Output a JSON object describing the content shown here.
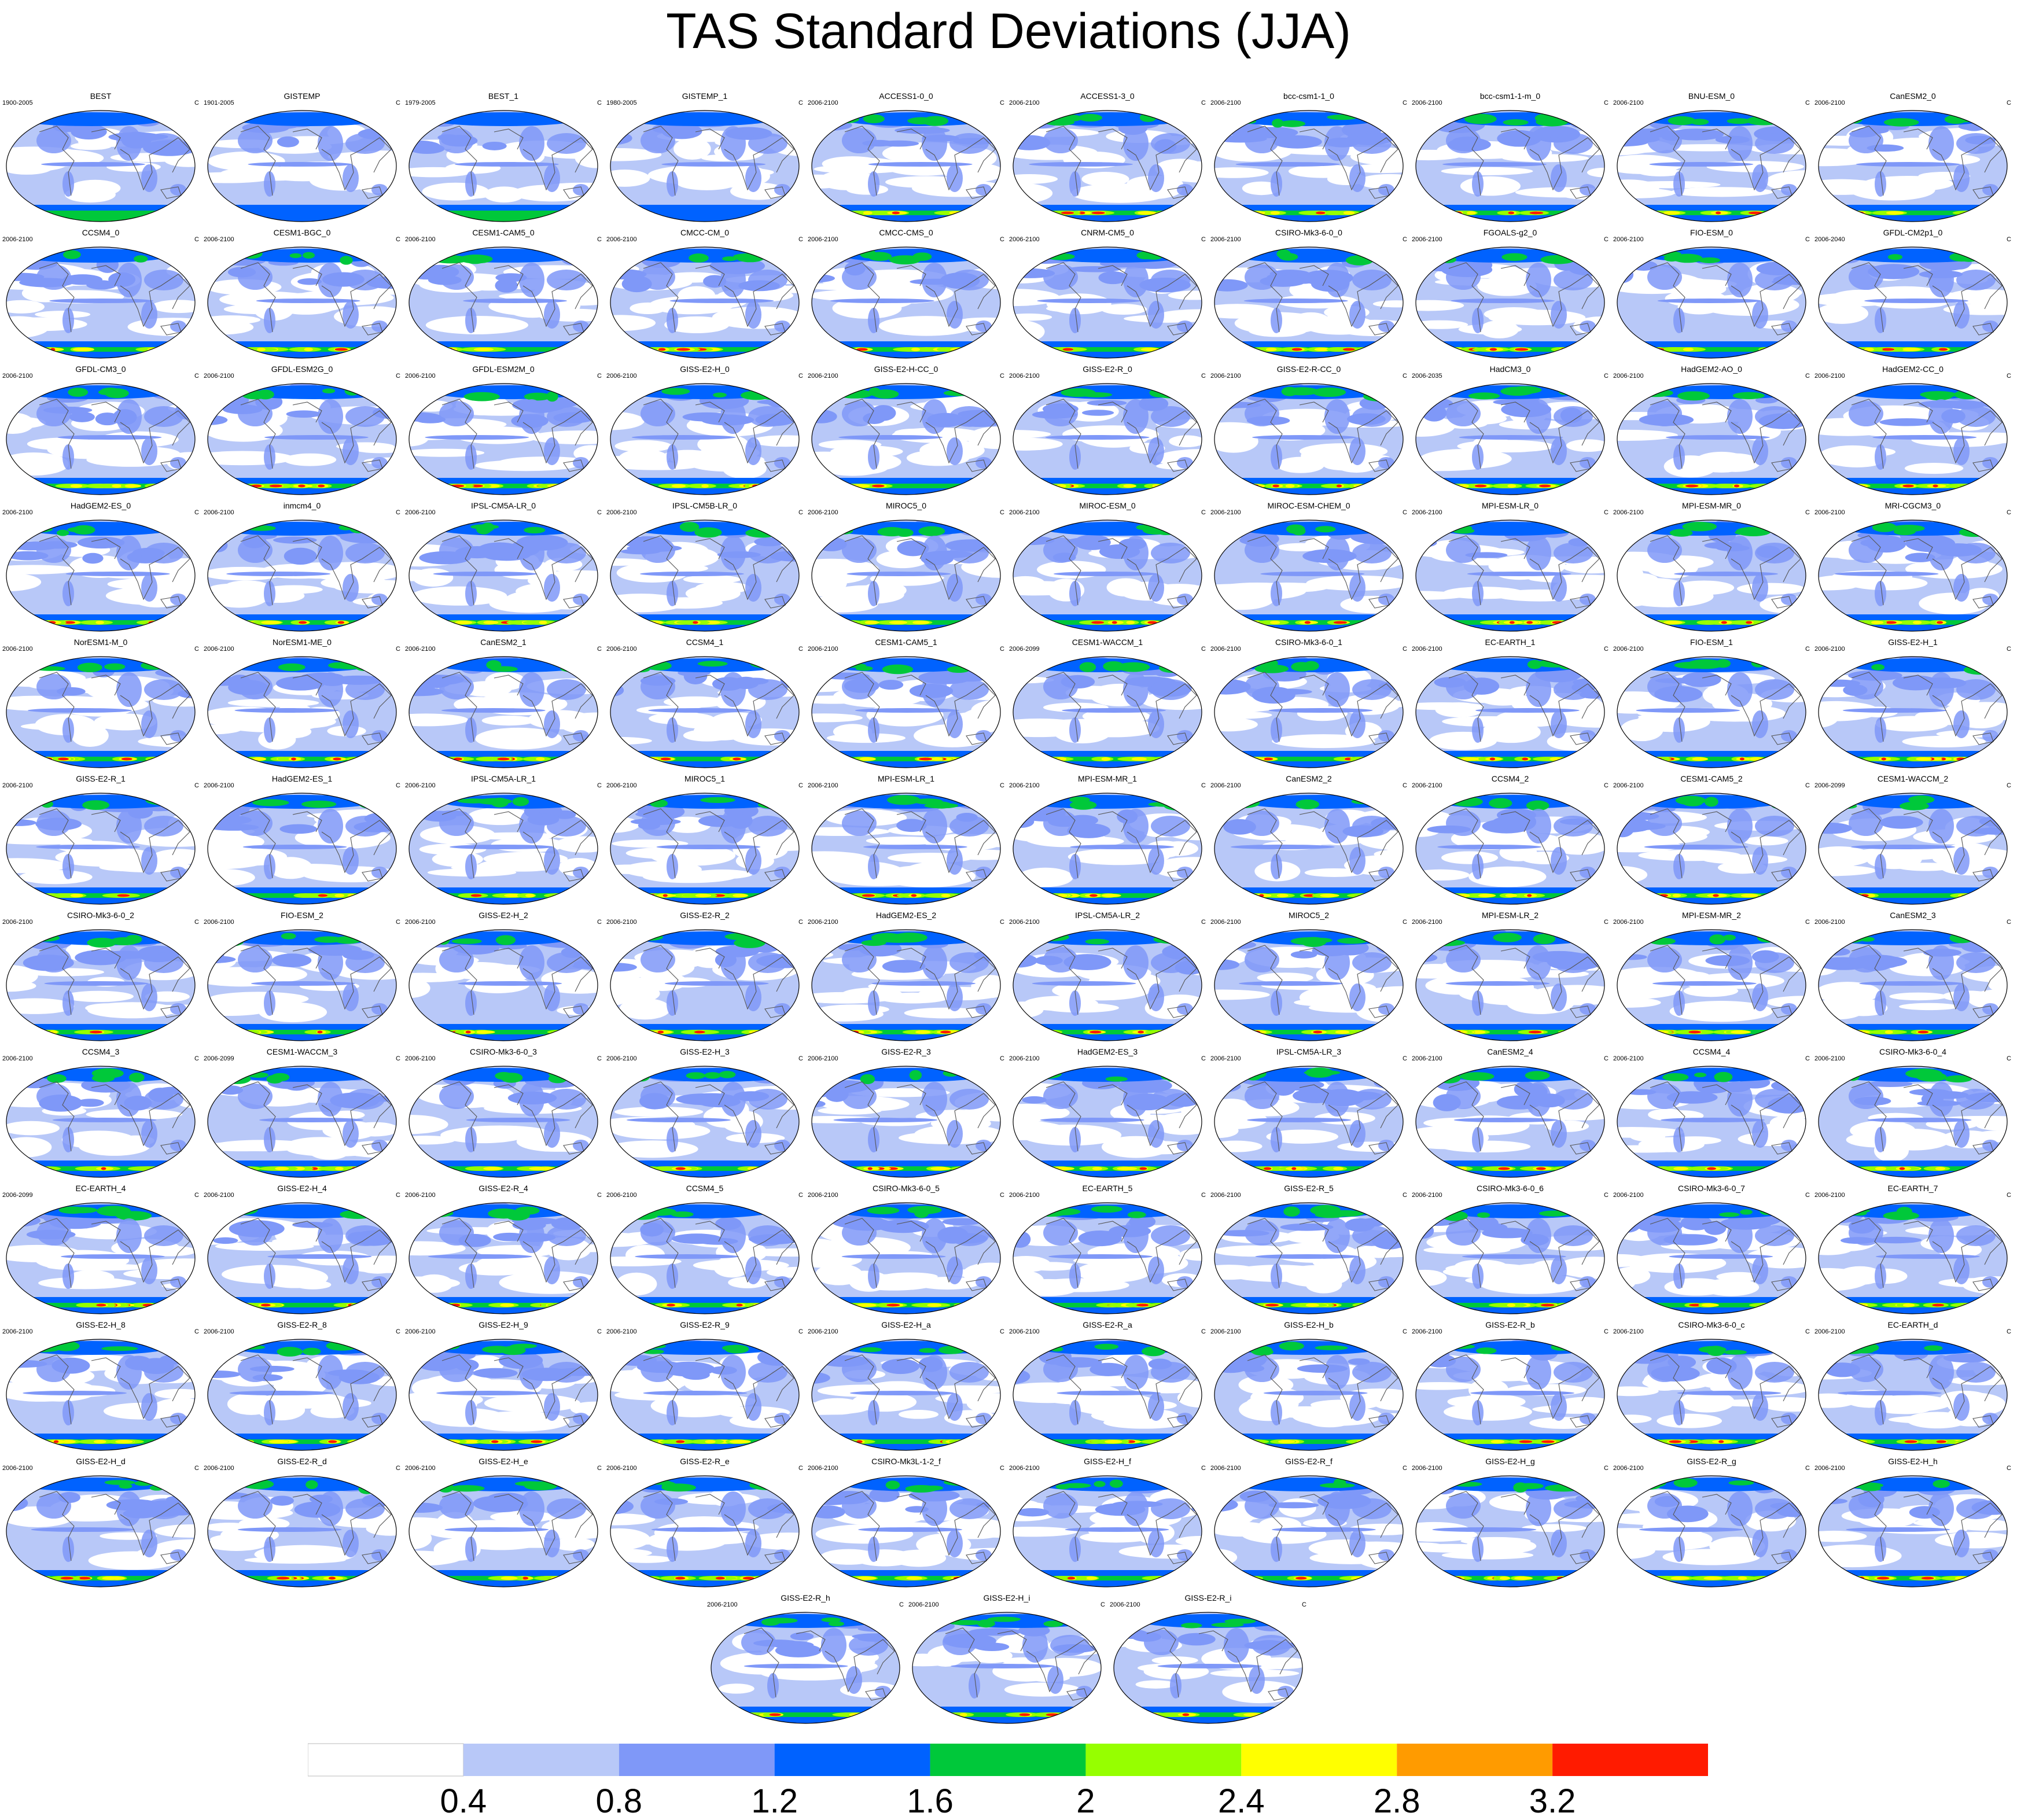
{
  "title": "TAS Standard Deviations (JJA)",
  "unit": "C",
  "colorbar": {
    "colors": [
      "#ffffff",
      "#b8c8f8",
      "#7f98f8",
      "#0062ff",
      "#00c83a",
      "#96ff00",
      "#ffff00",
      "#ff9b00",
      "#ff1b00"
    ],
    "labels": [
      "0.4",
      "0.8",
      "1.2",
      "1.6",
      "2",
      "2.4",
      "2.8",
      "3.2"
    ]
  },
  "panels": [
    {
      "name": "BEST",
      "period": "1900-2005"
    },
    {
      "name": "GISTEMP",
      "period": "1901-2005"
    },
    {
      "name": "BEST_1",
      "period": "1979-2005"
    },
    {
      "name": "GISTEMP_1",
      "period": "1980-2005"
    },
    {
      "name": "ACCESS1-0_0",
      "period": "2006-2100"
    },
    {
      "name": "ACCESS1-3_0",
      "period": "2006-2100"
    },
    {
      "name": "bcc-csm1-1_0",
      "period": "2006-2100"
    },
    {
      "name": "bcc-csm1-1-m_0",
      "period": "2006-2100"
    },
    {
      "name": "BNU-ESM_0",
      "period": "2006-2100"
    },
    {
      "name": "CanESM2_0",
      "period": "2006-2100"
    },
    {
      "name": "CCSM4_0",
      "period": "2006-2100"
    },
    {
      "name": "CESM1-BGC_0",
      "period": "2006-2100"
    },
    {
      "name": "CESM1-CAM5_0",
      "period": "2006-2100"
    },
    {
      "name": "CMCC-CM_0",
      "period": "2006-2100"
    },
    {
      "name": "CMCC-CMS_0",
      "period": "2006-2100"
    },
    {
      "name": "CNRM-CM5_0",
      "period": "2006-2100"
    },
    {
      "name": "CSIRO-Mk3-6-0_0",
      "period": "2006-2100"
    },
    {
      "name": "FGOALS-g2_0",
      "period": "2006-2100"
    },
    {
      "name": "FIO-ESM_0",
      "period": "2006-2100"
    },
    {
      "name": "GFDL-CM2p1_0",
      "period": "2006-2040"
    },
    {
      "name": "GFDL-CM3_0",
      "period": "2006-2100"
    },
    {
      "name": "GFDL-ESM2G_0",
      "period": "2006-2100"
    },
    {
      "name": "GFDL-ESM2M_0",
      "period": "2006-2100"
    },
    {
      "name": "GISS-E2-H_0",
      "period": "2006-2100"
    },
    {
      "name": "GISS-E2-H-CC_0",
      "period": "2006-2100"
    },
    {
      "name": "GISS-E2-R_0",
      "period": "2006-2100"
    },
    {
      "name": "GISS-E2-R-CC_0",
      "period": "2006-2100"
    },
    {
      "name": "HadCM3_0",
      "period": "2006-2035"
    },
    {
      "name": "HadGEM2-AO_0",
      "period": "2006-2100"
    },
    {
      "name": "HadGEM2-CC_0",
      "period": "2006-2100"
    },
    {
      "name": "HadGEM2-ES_0",
      "period": "2006-2100"
    },
    {
      "name": "inmcm4_0",
      "period": "2006-2100"
    },
    {
      "name": "IPSL-CM5A-LR_0",
      "period": "2006-2100"
    },
    {
      "name": "IPSL-CM5B-LR_0",
      "period": "2006-2100"
    },
    {
      "name": "MIROC5_0",
      "period": "2006-2100"
    },
    {
      "name": "MIROC-ESM_0",
      "period": "2006-2100"
    },
    {
      "name": "MIROC-ESM-CHEM_0",
      "period": "2006-2100"
    },
    {
      "name": "MPI-ESM-LR_0",
      "period": "2006-2100"
    },
    {
      "name": "MPI-ESM-MR_0",
      "period": "2006-2100"
    },
    {
      "name": "MRI-CGCM3_0",
      "period": "2006-2100"
    },
    {
      "name": "NorESM1-M_0",
      "period": "2006-2100"
    },
    {
      "name": "NorESM1-ME_0",
      "period": "2006-2100"
    },
    {
      "name": "CanESM2_1",
      "period": "2006-2100"
    },
    {
      "name": "CCSM4_1",
      "period": "2006-2100"
    },
    {
      "name": "CESM1-CAM5_1",
      "period": "2006-2100"
    },
    {
      "name": "CESM1-WACCM_1",
      "period": "2006-2099"
    },
    {
      "name": "CSIRO-Mk3-6-0_1",
      "period": "2006-2100"
    },
    {
      "name": "EC-EARTH_1",
      "period": "2006-2100"
    },
    {
      "name": "FIO-ESM_1",
      "period": "2006-2100"
    },
    {
      "name": "GISS-E2-H_1",
      "period": "2006-2100"
    },
    {
      "name": "GISS-E2-R_1",
      "period": "2006-2100"
    },
    {
      "name": "HadGEM2-ES_1",
      "period": "2006-2100"
    },
    {
      "name": "IPSL-CM5A-LR_1",
      "period": "2006-2100"
    },
    {
      "name": "MIROC5_1",
      "period": "2006-2100"
    },
    {
      "name": "MPI-ESM-LR_1",
      "period": "2006-2100"
    },
    {
      "name": "MPI-ESM-MR_1",
      "period": "2006-2100"
    },
    {
      "name": "CanESM2_2",
      "period": "2006-2100"
    },
    {
      "name": "CCSM4_2",
      "period": "2006-2100"
    },
    {
      "name": "CESM1-CAM5_2",
      "period": "2006-2100"
    },
    {
      "name": "CESM1-WACCM_2",
      "period": "2006-2099"
    },
    {
      "name": "CSIRO-Mk3-6-0_2",
      "period": "2006-2100"
    },
    {
      "name": "FIO-ESM_2",
      "period": "2006-2100"
    },
    {
      "name": "GISS-E2-H_2",
      "period": "2006-2100"
    },
    {
      "name": "GISS-E2-R_2",
      "period": "2006-2100"
    },
    {
      "name": "HadGEM2-ES_2",
      "period": "2006-2100"
    },
    {
      "name": "IPSL-CM5A-LR_2",
      "period": "2006-2100"
    },
    {
      "name": "MIROC5_2",
      "period": "2006-2100"
    },
    {
      "name": "MPI-ESM-LR_2",
      "period": "2006-2100"
    },
    {
      "name": "MPI-ESM-MR_2",
      "period": "2006-2100"
    },
    {
      "name": "CanESM2_3",
      "period": "2006-2100"
    },
    {
      "name": "CCSM4_3",
      "period": "2006-2100"
    },
    {
      "name": "CESM1-WACCM_3",
      "period": "2006-2099"
    },
    {
      "name": "CSIRO-Mk3-6-0_3",
      "period": "2006-2100"
    },
    {
      "name": "GISS-E2-H_3",
      "period": "2006-2100"
    },
    {
      "name": "GISS-E2-R_3",
      "period": "2006-2100"
    },
    {
      "name": "HadGEM2-ES_3",
      "period": "2006-2100"
    },
    {
      "name": "IPSL-CM5A-LR_3",
      "period": "2006-2100"
    },
    {
      "name": "CanESM2_4",
      "period": "2006-2100"
    },
    {
      "name": "CCSM4_4",
      "period": "2006-2100"
    },
    {
      "name": "CSIRO-Mk3-6-0_4",
      "period": "2006-2100"
    },
    {
      "name": "EC-EARTH_4",
      "period": "2006-2099"
    },
    {
      "name": "GISS-E2-H_4",
      "period": "2006-2100"
    },
    {
      "name": "GISS-E2-R_4",
      "period": "2006-2100"
    },
    {
      "name": "CCSM4_5",
      "period": "2006-2100"
    },
    {
      "name": "CSIRO-Mk3-6-0_5",
      "period": "2006-2100"
    },
    {
      "name": "EC-EARTH_5",
      "period": "2006-2100"
    },
    {
      "name": "GISS-E2-R_5",
      "period": "2006-2100"
    },
    {
      "name": "CSIRO-Mk3-6-0_6",
      "period": "2006-2100"
    },
    {
      "name": "CSIRO-Mk3-6-0_7",
      "period": "2006-2100"
    },
    {
      "name": "EC-EARTH_7",
      "period": "2006-2100"
    },
    {
      "name": "GISS-E2-H_8",
      "period": "2006-2100"
    },
    {
      "name": "GISS-E2-R_8",
      "period": "2006-2100"
    },
    {
      "name": "GISS-E2-H_9",
      "period": "2006-2100"
    },
    {
      "name": "GISS-E2-R_9",
      "period": "2006-2100"
    },
    {
      "name": "GISS-E2-H_a",
      "period": "2006-2100"
    },
    {
      "name": "GISS-E2-R_a",
      "period": "2006-2100"
    },
    {
      "name": "GISS-E2-H_b",
      "period": "2006-2100"
    },
    {
      "name": "GISS-E2-R_b",
      "period": "2006-2100"
    },
    {
      "name": "CSIRO-Mk3-6-0_c",
      "period": "2006-2100"
    },
    {
      "name": "EC-EARTH_d",
      "period": "2006-2100"
    },
    {
      "name": "GISS-E2-H_d",
      "period": "2006-2100"
    },
    {
      "name": "GISS-E2-R_d",
      "period": "2006-2100"
    },
    {
      "name": "GISS-E2-H_e",
      "period": "2006-2100"
    },
    {
      "name": "GISS-E2-R_e",
      "period": "2006-2100"
    },
    {
      "name": "CSIRO-Mk3L-1-2_f",
      "period": "2006-2100"
    },
    {
      "name": "GISS-E2-H_f",
      "period": "2006-2100"
    },
    {
      "name": "GISS-E2-R_f",
      "period": "2006-2100"
    },
    {
      "name": "GISS-E2-H_g",
      "period": "2006-2100"
    },
    {
      "name": "GISS-E2-R_g",
      "period": "2006-2100"
    },
    {
      "name": "GISS-E2-H_h",
      "period": "2006-2100"
    },
    {
      "name": "GISS-E2-R_h",
      "period": "2006-2100"
    },
    {
      "name": "GISS-E2-H_i",
      "period": "2006-2100"
    },
    {
      "name": "GISS-E2-R_i",
      "period": "2006-2100"
    }
  ]
}
